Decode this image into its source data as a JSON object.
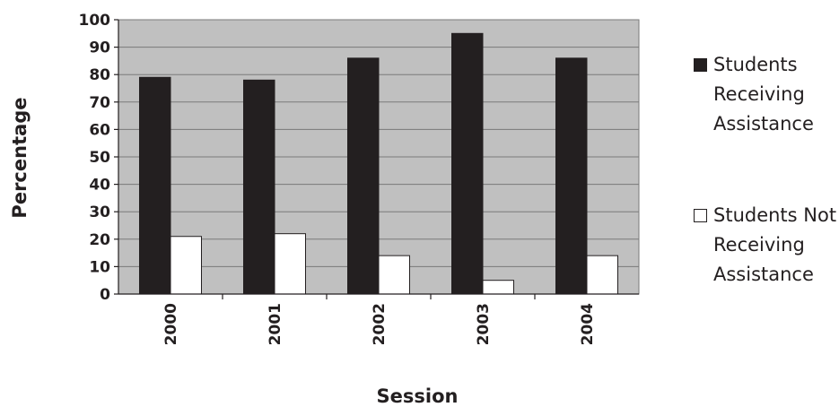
{
  "chart_data": {
    "type": "bar",
    "title": "",
    "xlabel": "Session",
    "ylabel": "Percentage",
    "categories": [
      "2000",
      "2001",
      "2002",
      "2003",
      "2004"
    ],
    "ylim": [
      0,
      100
    ],
    "yticks": [
      "0",
      "10",
      "20",
      "30",
      "40",
      "50",
      "60",
      "70",
      "80",
      "90",
      "100"
    ],
    "grid": true,
    "legend_position": "right",
    "plot_background": "#c0c0c0",
    "series": [
      {
        "name": "Students Receiving Assistance",
        "color": "#231f20",
        "values": [
          79,
          78,
          86,
          95,
          86
        ]
      },
      {
        "name": "Students Not Receiving Assistance",
        "color": "#ffffff",
        "values": [
          21,
          22,
          14,
          5,
          14
        ]
      }
    ]
  }
}
